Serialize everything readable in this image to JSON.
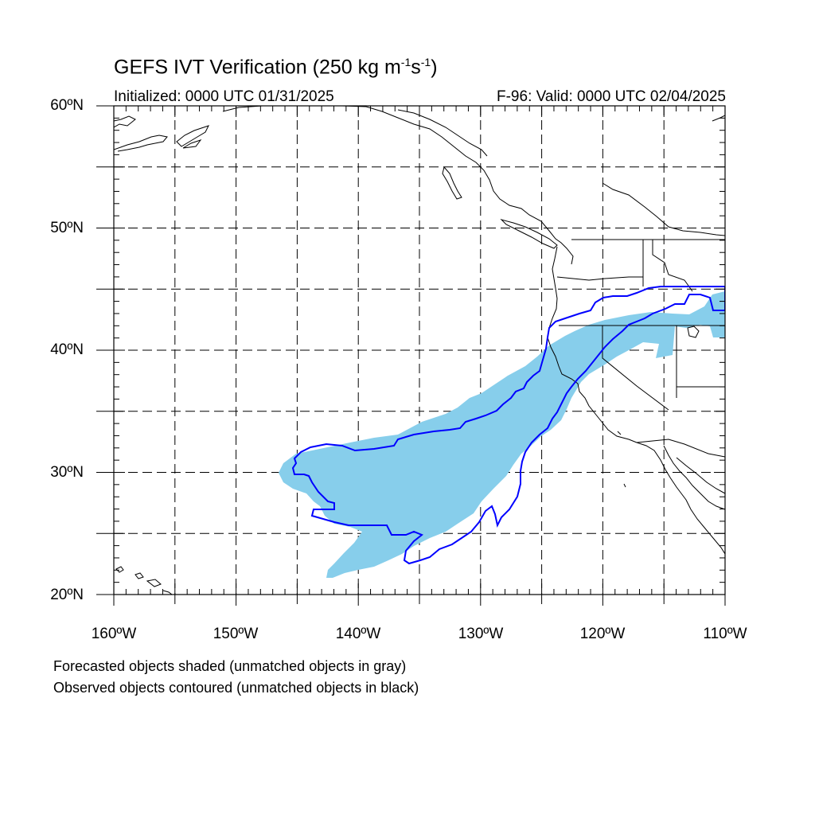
{
  "title": {
    "main": "GEFS IVT Verification (250 kg m",
    "sup1": "-1",
    "mid": "s",
    "sup2": "-1",
    "end": ")"
  },
  "initialized": "Initialized: 0000 UTC 01/31/2025",
  "valid": "F-96: Valid: 0000 UTC 02/04/2025",
  "lat_labels": [
    "60ºN",
    "50ºN",
    "40ºN",
    "30ºN",
    "20ºN"
  ],
  "lon_labels": [
    "160ºW",
    "150ºW",
    "140ºW",
    "130ºW",
    "120ºW",
    "110ºW"
  ],
  "footer": [
    "Forecasted objects shaded (unmatched objects in gray)",
    "Observed objects contoured (unmatched objects in black)"
  ],
  "map_extent": {
    "lon": [
      -160,
      -110
    ],
    "lat": [
      20,
      60
    ]
  },
  "colors": {
    "forecast_fill": "#87ceeb",
    "observed_contour": "#0000ff",
    "coastline": "#000000",
    "grid": "#000000"
  },
  "grid_lines": {
    "lon": [
      -155,
      -150,
      -145,
      -140,
      -135,
      -130,
      -125,
      -120,
      -115
    ],
    "lat": [
      25,
      30,
      35,
      40,
      45,
      50,
      55
    ]
  }
}
